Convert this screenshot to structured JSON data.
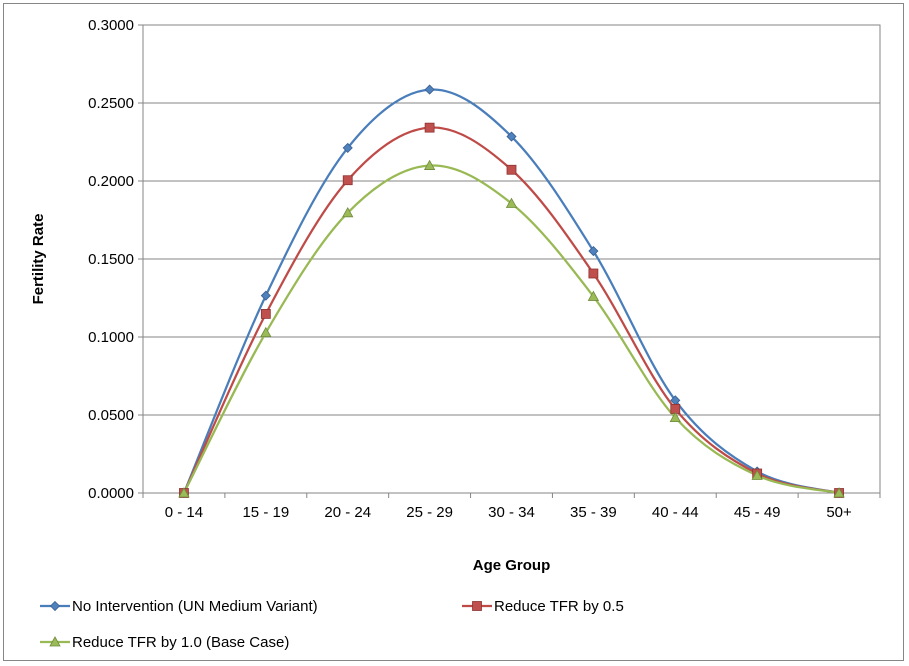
{
  "chart_data": {
    "type": "line",
    "title": "",
    "xlabel": "Age Group",
    "ylabel": "Fertility Rate",
    "categories": [
      "0 - 14",
      "15 - 19",
      "20 - 24",
      "25 - 29",
      "30 - 34",
      "35 - 39",
      "40 - 44",
      "45 - 49",
      "50+"
    ],
    "ylim": [
      0,
      0.3
    ],
    "yticks": [
      "0.0000",
      "0.0500",
      "0.1000",
      "0.1500",
      "0.2000",
      "0.2500",
      "0.3000"
    ],
    "grid": true,
    "legend_position": "bottom",
    "smoothed": true,
    "series": [
      {
        "name": "No Intervention (UN Medium Variant)",
        "color": "#4a7ebb",
        "marker": "diamond",
        "marker_fill": "#4f81bd",
        "values": [
          0.0,
          0.1265,
          0.2212,
          0.2586,
          0.2285,
          0.1551,
          0.0594,
          0.0138,
          0.0
        ]
      },
      {
        "name": "Reduce TFR by 0.5",
        "color": "#be4b48",
        "marker": "square",
        "marker_fill": "#c0504d",
        "values": [
          0.0,
          0.1148,
          0.2005,
          0.2342,
          0.2072,
          0.1407,
          0.0539,
          0.0125,
          0.0
        ]
      },
      {
        "name": "Reduce TFR by 1.0 (Base Case)",
        "color": "#98b954",
        "marker": "triangle",
        "marker_fill": "#9bbb59",
        "values": [
          0.0,
          0.1028,
          0.1796,
          0.2099,
          0.1856,
          0.126,
          0.0483,
          0.0112,
          0.0
        ]
      }
    ]
  }
}
